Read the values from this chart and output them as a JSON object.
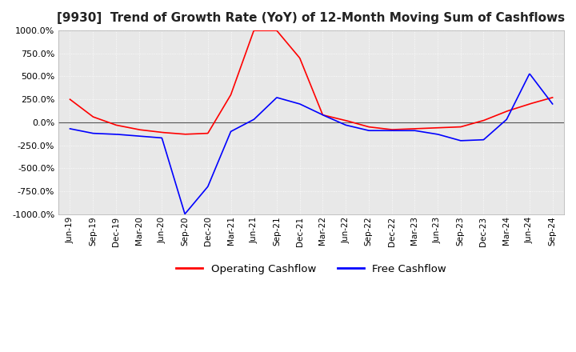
{
  "title": "[9930]  Trend of Growth Rate (YoY) of 12-Month Moving Sum of Cashflows",
  "title_fontsize": 11,
  "ylim": [
    -1000,
    1000
  ],
  "yticks": [
    -1000,
    -750,
    -500,
    -250,
    0,
    250,
    500,
    750,
    1000
  ],
  "background_color": "#ffffff",
  "plot_bg_color": "#e8e8e8",
  "grid_color": "#ffffff",
  "legend_labels": [
    "Operating Cashflow",
    "Free Cashflow"
  ],
  "legend_colors": [
    "#ff0000",
    "#0000ff"
  ],
  "x_labels": [
    "Jun-19",
    "Sep-19",
    "Dec-19",
    "Mar-20",
    "Jun-20",
    "Sep-20",
    "Dec-20",
    "Mar-21",
    "Jun-21",
    "Sep-21",
    "Dec-21",
    "Mar-22",
    "Jun-22",
    "Sep-22",
    "Dec-22",
    "Mar-23",
    "Jun-23",
    "Sep-23",
    "Dec-23",
    "Mar-24",
    "Jun-24",
    "Sep-24"
  ],
  "operating_cf": [
    250,
    60,
    -30,
    -80,
    -110,
    -130,
    -120,
    300,
    999,
    999,
    700,
    80,
    20,
    -50,
    -80,
    -70,
    -60,
    -50,
    20,
    120,
    200,
    270
  ],
  "free_cf": [
    -70,
    -120,
    -130,
    -150,
    -170,
    -999,
    -700,
    -100,
    30,
    270,
    200,
    80,
    -30,
    -90,
    -90,
    -90,
    -130,
    -200,
    -190,
    30,
    530,
    200
  ]
}
